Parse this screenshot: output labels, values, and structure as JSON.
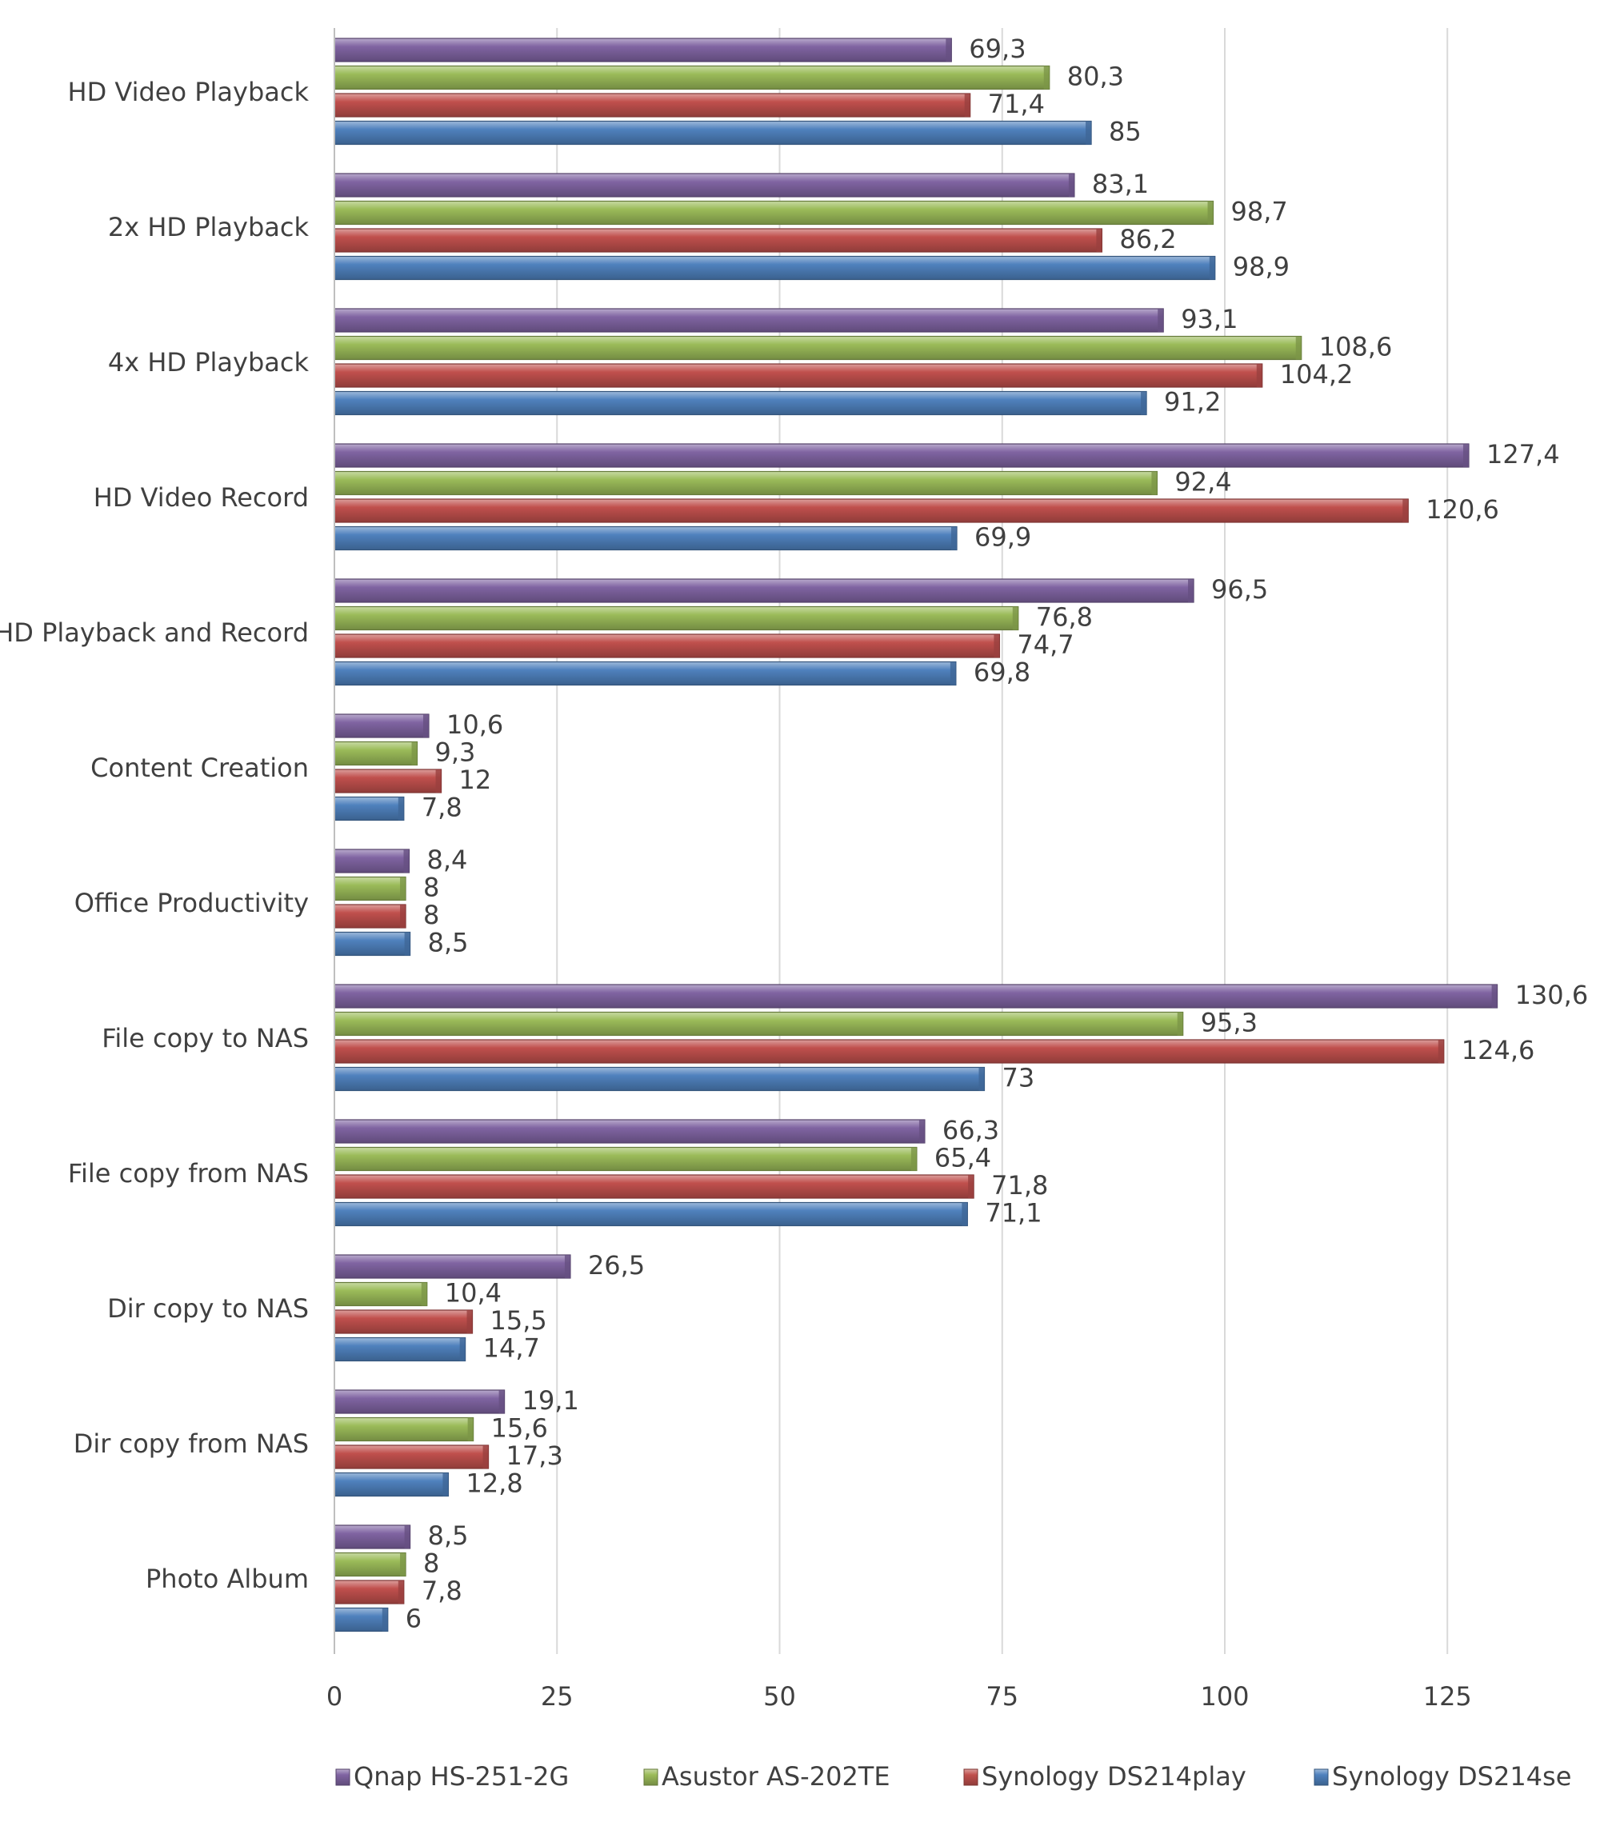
{
  "chart_data": {
    "type": "bar",
    "orientation": "horizontal",
    "title": "",
    "xlabel": "",
    "ylabel": "",
    "xlim": [
      0,
      135
    ],
    "x_ticks": [
      0,
      25,
      50,
      75,
      100,
      125
    ],
    "grid": "vertical",
    "legend_position": "bottom",
    "decimal_separator": ",",
    "categories": [
      "HD Video Playback",
      "2x HD Playback",
      "4x HD Playback",
      "HD Video Record",
      "HD Playback and Record",
      "Content Creation",
      "Office Productivity",
      "File copy to NAS",
      "File copy from NAS",
      "Dir copy to NAS",
      "Dir copy from NAS",
      "Photo Album"
    ],
    "series": [
      {
        "name": "Qnap HS-251-2G",
        "color": "#8064A2",
        "values": [
          69.3,
          83.1,
          93.1,
          127.4,
          96.5,
          10.6,
          8.4,
          130.6,
          66.3,
          26.5,
          19.1,
          8.5
        ]
      },
      {
        "name": "Asustor AS-202TE",
        "color": "#9BBB59",
        "values": [
          80.3,
          98.7,
          108.6,
          92.4,
          76.8,
          9.3,
          8,
          95.3,
          65.4,
          10.4,
          15.6,
          8
        ]
      },
      {
        "name": "Synology DS214play",
        "color": "#C0504D",
        "values": [
          71.4,
          86.2,
          104.2,
          120.6,
          74.7,
          12,
          8,
          124.6,
          71.8,
          15.5,
          17.3,
          7.8
        ]
      },
      {
        "name": "Synology DS214se",
        "color": "#4F81BD",
        "values": [
          85,
          98.9,
          91.2,
          69.9,
          69.8,
          7.8,
          8.5,
          73,
          71.1,
          14.7,
          12.8,
          6
        ]
      }
    ]
  }
}
